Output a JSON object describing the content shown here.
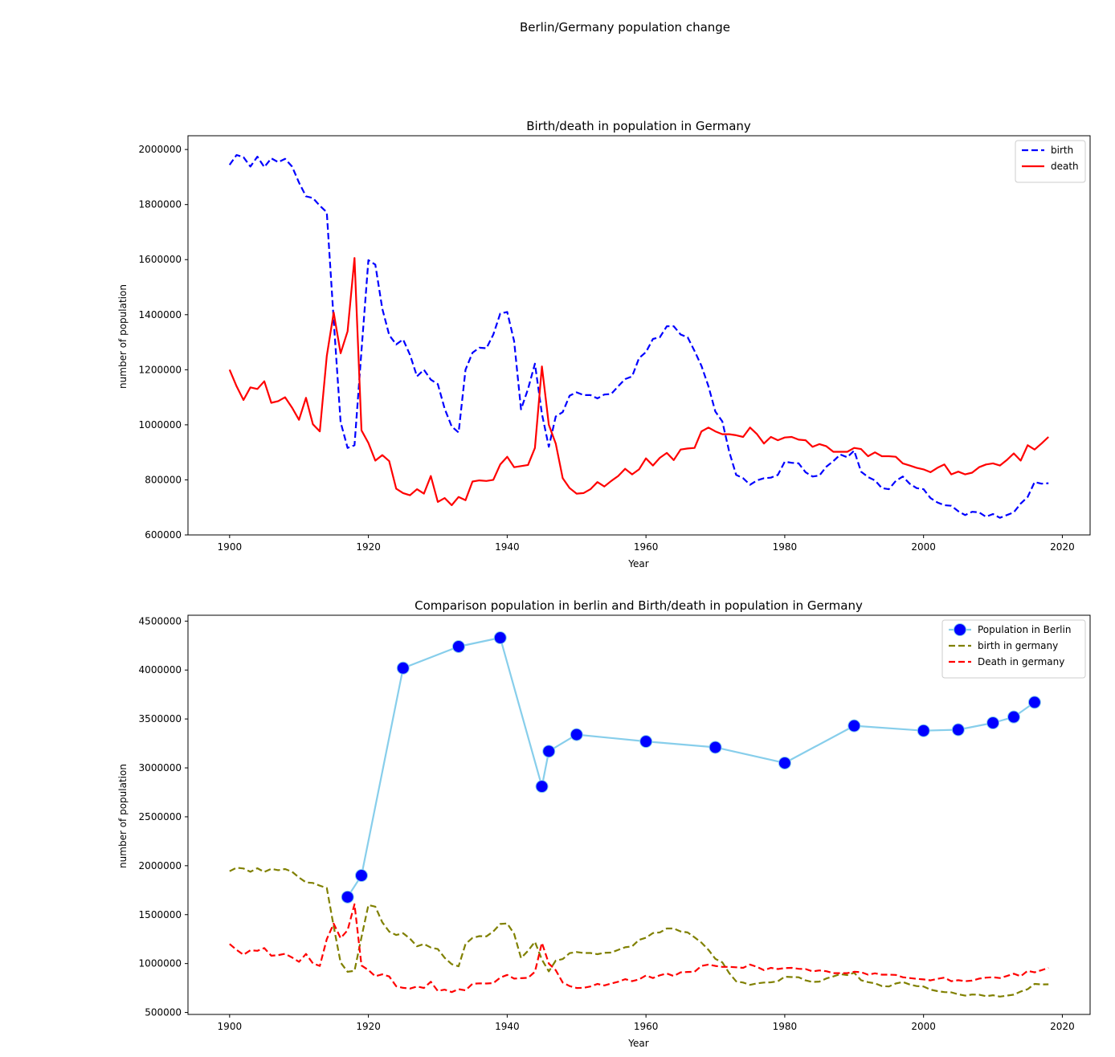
{
  "figure": {
    "suptitle": "Berlin/Germany population change"
  },
  "chart_data": [
    {
      "type": "line",
      "title": "Birth/death in population in Germany",
      "xlabel": "Year",
      "ylabel": "number of population",
      "xlim": [
        1894,
        2024
      ],
      "ylim": [
        600000,
        2050000
      ],
      "xticks": [
        1900,
        1920,
        1940,
        1960,
        1980,
        2000,
        2020
      ],
      "yticks": [
        600000,
        800000,
        1000000,
        1200000,
        1400000,
        1600000,
        1800000,
        2000000
      ],
      "legend": {
        "position": "upper right"
      },
      "grid": false,
      "series": [
        {
          "name": "birth",
          "color": "#0000ff",
          "style": "dashed",
          "x_start": 1900,
          "values": [
            1944000,
            1980000,
            1972000,
            1938000,
            1974000,
            1936000,
            1968000,
            1954000,
            1966000,
            1938000,
            1880000,
            1830000,
            1824000,
            1796000,
            1772000,
            1380000,
            1010000,
            916000,
            926000,
            1270000,
            1598000,
            1582000,
            1422000,
            1326000,
            1292000,
            1310000,
            1254000,
            1176000,
            1200000,
            1164000,
            1148000,
            1058000,
            994000,
            972000,
            1200000,
            1262000,
            1280000,
            1278000,
            1328000,
            1404000,
            1410000,
            1304000,
            1056000,
            1130000,
            1222000,
            1040000,
            920000,
            1030000,
            1046000,
            1106000,
            1118000,
            1108000,
            1108000,
            1096000,
            1110000,
            1112000,
            1140000,
            1166000,
            1176000,
            1242000,
            1264000,
            1312000,
            1318000,
            1358000,
            1358000,
            1328000,
            1318000,
            1268000,
            1214000,
            1140000,
            1048000,
            1012000,
            902000,
            818000,
            806000,
            782000,
            798000,
            806000,
            808000,
            818000,
            866000,
            862000,
            860000,
            828000,
            812000,
            816000,
            848000,
            868000,
            892000,
            882000,
            906000,
            830000,
            810000,
            798000,
            770000,
            766000,
            796000,
            812000,
            786000,
            770000,
            766000,
            734000,
            718000,
            708000,
            706000,
            686000,
            672000,
            684000,
            682000,
            666000,
            676000,
            662000,
            672000,
            682000,
            714000,
            738000,
            792000,
            786000,
            788000
          ]
        },
        {
          "name": "death",
          "color": "#ff0000",
          "style": "solid",
          "x_start": 1900,
          "values": [
            1200000,
            1140000,
            1090000,
            1136000,
            1130000,
            1158000,
            1080000,
            1086000,
            1100000,
            1062000,
            1018000,
            1098000,
            1002000,
            976000,
            1250000,
            1408000,
            1260000,
            1340000,
            1606000,
            980000,
            934000,
            870000,
            890000,
            868000,
            768000,
            752000,
            744000,
            766000,
            750000,
            814000,
            720000,
            734000,
            708000,
            738000,
            726000,
            794000,
            798000,
            796000,
            800000,
            856000,
            884000,
            846000,
            850000,
            854000,
            916000,
            1212000,
            1000000,
            932000,
            806000,
            770000,
            750000,
            752000,
            766000,
            792000,
            776000,
            796000,
            814000,
            840000,
            820000,
            838000,
            878000,
            852000,
            880000,
            898000,
            872000,
            910000,
            914000,
            916000,
            976000,
            990000,
            976000,
            966000,
            966000,
            962000,
            956000,
            990000,
            966000,
            932000,
            956000,
            944000,
            954000,
            956000,
            946000,
            944000,
            920000,
            930000,
            922000,
            902000,
            902000,
            902000,
            916000,
            912000,
            886000,
            900000,
            886000,
            886000,
            884000,
            860000,
            852000,
            844000,
            838000,
            828000,
            844000,
            856000,
            820000,
            830000,
            820000,
            826000,
            846000,
            856000,
            860000,
            852000,
            872000,
            896000,
            870000,
            926000,
            910000,
            932000,
            956000
          ]
        }
      ]
    },
    {
      "type": "line",
      "title": "Comparison population in berlin and Birth/death in population in Germany",
      "xlabel": "Year",
      "ylabel": "number of population",
      "xlim": [
        1894,
        2024
      ],
      "ylim": [
        480000,
        4560000
      ],
      "xticks": [
        1900,
        1920,
        1940,
        1960,
        1980,
        2000,
        2020
      ],
      "yticks": [
        500000,
        1000000,
        1500000,
        2000000,
        2500000,
        3000000,
        3500000,
        4000000,
        4500000
      ],
      "legend": {
        "position": "upper right"
      },
      "grid": false,
      "series": [
        {
          "name": "Population in Berlin",
          "color": "#87ceeb",
          "marker_color": "#0000ff",
          "style": "solid-markers",
          "x": [
            1917,
            1919,
            1925,
            1933,
            1939,
            1945,
            1946,
            1950,
            1960,
            1970,
            1980,
            1990,
            2000,
            2005,
            2010,
            2013,
            2016
          ],
          "values": [
            1680000,
            1900000,
            4020000,
            4240000,
            4330000,
            2810000,
            3170000,
            3340000,
            3270000,
            3210000,
            3050000,
            3430000,
            3380000,
            3390000,
            3460000,
            3520000,
            3670000
          ]
        },
        {
          "name": "birth in germany",
          "color": "#808000",
          "style": "dashed",
          "same_as": "birth"
        },
        {
          "name": "Death in germany",
          "color": "#ff0000",
          "style": "dashed",
          "same_as": "death"
        }
      ]
    }
  ]
}
